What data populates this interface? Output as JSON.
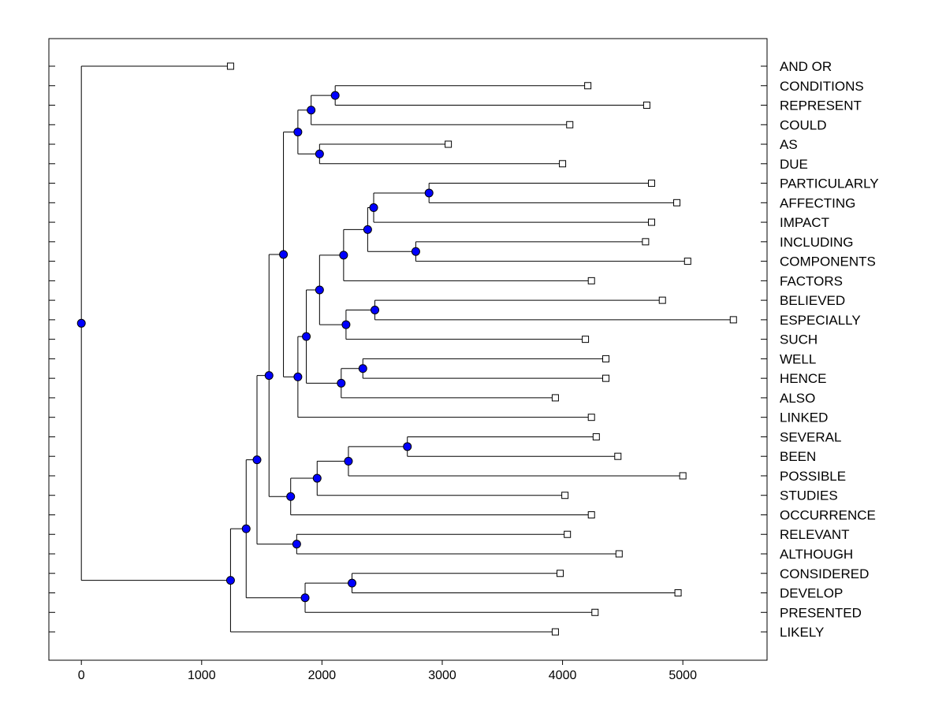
{
  "chart_data": {
    "type": "dendrogram",
    "title": "",
    "xlabel": "",
    "ylabel": "",
    "xlim": [
      -270,
      5700
    ],
    "x_ticks": [
      0,
      1000,
      2000,
      3000,
      4000,
      5000
    ],
    "grid": false,
    "legend": "none",
    "colors": {
      "node": "#0000ff",
      "node_outline": "#000000",
      "line": "#000000",
      "leaf_fill": "#ffffff",
      "background": "#ffffff"
    },
    "leaves": [
      {
        "label": "AND OR",
        "x": 1240
      },
      {
        "label": "CONDITIONS",
        "x": 4210
      },
      {
        "label": "REPRESENT",
        "x": 4700
      },
      {
        "label": "COULD",
        "x": 4060
      },
      {
        "label": "AS",
        "x": 3050
      },
      {
        "label": "DUE",
        "x": 4000
      },
      {
        "label": "PARTICULARLY",
        "x": 4740
      },
      {
        "label": "AFFECTING",
        "x": 4950
      },
      {
        "label": "IMPACT",
        "x": 4740
      },
      {
        "label": "INCLUDING",
        "x": 4690
      },
      {
        "label": "COMPONENTS",
        "x": 5040
      },
      {
        "label": "FACTORS",
        "x": 4240
      },
      {
        "label": "BELIEVED",
        "x": 4830
      },
      {
        "label": "ESPECIALLY",
        "x": 5420
      },
      {
        "label": "SUCH",
        "x": 4190
      },
      {
        "label": "WELL",
        "x": 4360
      },
      {
        "label": "HENCE",
        "x": 4360
      },
      {
        "label": "ALSO",
        "x": 3940
      },
      {
        "label": "LINKED",
        "x": 4240
      },
      {
        "label": "SEVERAL",
        "x": 4280
      },
      {
        "label": "BEEN",
        "x": 4460
      },
      {
        "label": "POSSIBLE",
        "x": 5000
      },
      {
        "label": "STUDIES",
        "x": 4020
      },
      {
        "label": "OCCURRENCE",
        "x": 4240
      },
      {
        "label": "RELEVANT",
        "x": 4040
      },
      {
        "label": "ALTHOUGH",
        "x": 4470
      },
      {
        "label": "CONSIDERED",
        "x": 3980
      },
      {
        "label": "DEVELOP",
        "x": 4960
      },
      {
        "label": "PRESENTED",
        "x": 4270
      },
      {
        "label": "LIKELY",
        "x": 3940
      }
    ],
    "merges": [
      {
        "id": "n1",
        "x": 2110,
        "children": [
          "L1",
          "L2"
        ]
      },
      {
        "id": "n2",
        "x": 1910,
        "children": [
          "n1",
          "L3"
        ]
      },
      {
        "id": "n3",
        "x": 1980,
        "children": [
          "L4",
          "L5"
        ]
      },
      {
        "id": "n4",
        "x": 1800,
        "children": [
          "n2",
          "n3"
        ]
      },
      {
        "id": "n5",
        "x": 2890,
        "children": [
          "L6",
          "L7"
        ]
      },
      {
        "id": "n6",
        "x": 2430,
        "children": [
          "n5",
          "L8"
        ]
      },
      {
        "id": "n7",
        "x": 2780,
        "children": [
          "L9",
          "L10"
        ]
      },
      {
        "id": "n8",
        "x": 2380,
        "children": [
          "n6",
          "n7"
        ]
      },
      {
        "id": "n9",
        "x": 2180,
        "children": [
          "n8",
          "L11"
        ]
      },
      {
        "id": "n10",
        "x": 2440,
        "children": [
          "L12",
          "L13"
        ]
      },
      {
        "id": "n11",
        "x": 2200,
        "children": [
          "n10",
          "L14"
        ]
      },
      {
        "id": "n12",
        "x": 1980,
        "children": [
          "n9",
          "n11"
        ]
      },
      {
        "id": "n13",
        "x": 2340,
        "children": [
          "L15",
          "L16"
        ]
      },
      {
        "id": "n14",
        "x": 2160,
        "children": [
          "n13",
          "L17"
        ]
      },
      {
        "id": "n15",
        "x": 1870,
        "children": [
          "n12",
          "n14"
        ]
      },
      {
        "id": "n16",
        "x": 1800,
        "children": [
          "n15",
          "L18"
        ]
      },
      {
        "id": "n17",
        "x": 1680,
        "children": [
          "n4",
          "n16"
        ]
      },
      {
        "id": "n18",
        "x": 2710,
        "children": [
          "L19",
          "L20"
        ]
      },
      {
        "id": "n19",
        "x": 2220,
        "children": [
          "n18",
          "L21"
        ]
      },
      {
        "id": "n20",
        "x": 1960,
        "children": [
          "n19",
          "L22"
        ]
      },
      {
        "id": "n21",
        "x": 1740,
        "children": [
          "n20",
          "L23"
        ]
      },
      {
        "id": "n22",
        "x": 1560,
        "children": [
          "n17",
          "n21"
        ]
      },
      {
        "id": "n23",
        "x": 1790,
        "children": [
          "L24",
          "L25"
        ]
      },
      {
        "id": "n24",
        "x": 1460,
        "children": [
          "n22",
          "n23"
        ]
      },
      {
        "id": "n25",
        "x": 2250,
        "children": [
          "L26",
          "L27"
        ]
      },
      {
        "id": "n26",
        "x": 1860,
        "children": [
          "n25",
          "L28"
        ]
      },
      {
        "id": "n27",
        "x": 1370,
        "children": [
          "n24",
          "n26"
        ]
      },
      {
        "id": "n28",
        "x": 1240,
        "children": [
          "n27",
          "L29"
        ]
      },
      {
        "id": "n29",
        "x": 0,
        "children": [
          "L0",
          "n28"
        ]
      }
    ]
  }
}
